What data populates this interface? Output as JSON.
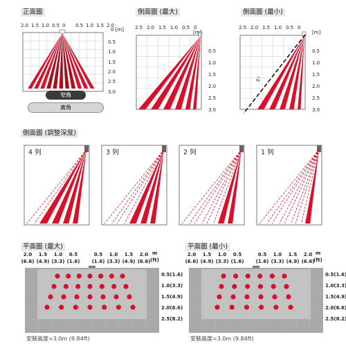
{
  "colors": {
    "zone_red": "#d8102b",
    "grid": "#c8c8c8",
    "frame": "#555555",
    "floor_gray": "#a9a9a9"
  },
  "front_view": {
    "title": "正面圖",
    "x_ticks": [
      "2.0",
      "1.5",
      "1.0",
      "0.5",
      "0",
      "0.5",
      "1.0",
      "1.5",
      "2.0"
    ],
    "unit": "0 [m]",
    "y_ticks": [
      "0.5",
      "1.0",
      "1.5",
      "2.0",
      "2.5",
      "3.0"
    ],
    "narrow_label": "窄角",
    "wide_label": "廣角"
  },
  "side_view_max": {
    "title": "側面圖 (最大)",
    "x_ticks": [
      "2.5",
      "2.0",
      "1.5",
      "1.0",
      "0.5",
      "0"
    ],
    "unit": "[m]",
    "y_ticks": [
      "0.5",
      "1.0",
      "1.5",
      "2.0",
      "2.5",
      "3.0"
    ]
  },
  "side_view_min": {
    "title": "側面圖 (最小)",
    "x_ticks": [
      "2.5",
      "2.0",
      "1.5",
      "1.0",
      "0.5",
      "0"
    ],
    "unit": "[m]",
    "y_ticks": [
      "0.5",
      "1.0",
      "1.5",
      "2.0",
      "2.5",
      "3.0"
    ],
    "angle_label": "5°"
  },
  "depth_adjust": {
    "title": "側面圖 (調整深度)",
    "panels": [
      {
        "label": "4 列",
        "solid_rows": 4
      },
      {
        "label": "3 列",
        "solid_rows": 3
      },
      {
        "label": "2 列",
        "solid_rows": 2
      },
      {
        "label": "1 列",
        "solid_rows": 1
      }
    ]
  },
  "plan_max": {
    "title": "平面圖 (最大)",
    "x_ticks_m": [
      "2.0",
      "1.5",
      "1.0",
      "0.5",
      "0.5",
      "1.0",
      "1.5",
      "2.0"
    ],
    "x_ticks_ft": [
      "(6.6)",
      "(4.9)",
      "(3.3)",
      "(1.6)",
      "(1.6)",
      "(3.3)",
      "(4.9)",
      "(6.6)"
    ],
    "unit": "m",
    "unit_ft": "(ft)",
    "rows": [
      "0.5(1.6)",
      "1.0(3.3)",
      "1.5(4.9)",
      "2.0(6.6)",
      "2.5(8.2)"
    ],
    "dot_rows": 4,
    "footnote": "安裝高度=3.0m (9.84ft)"
  },
  "plan_min": {
    "title": "平面圖 (最小)",
    "x_ticks_m": [
      "2.0",
      "1.5",
      "1.0",
      "0.5",
      "0.5",
      "1.0",
      "1.5",
      "2.0"
    ],
    "x_ticks_ft": [
      "(6.6)",
      "(4.9)",
      "(3.3)",
      "(1.6)",
      "(1.6)",
      "(3.3)",
      "(4.9)",
      "(6.6)"
    ],
    "unit": "m",
    "unit_ft": "(ft)",
    "rows": [
      "0.5(1.6)",
      "1.0(3.3)",
      "1.5(4.9)",
      "2.0(6.6)",
      "2.5(8.2)"
    ],
    "dot_rows": 4,
    "footnote": "安裝高度=3.0m (9.84ft)"
  }
}
